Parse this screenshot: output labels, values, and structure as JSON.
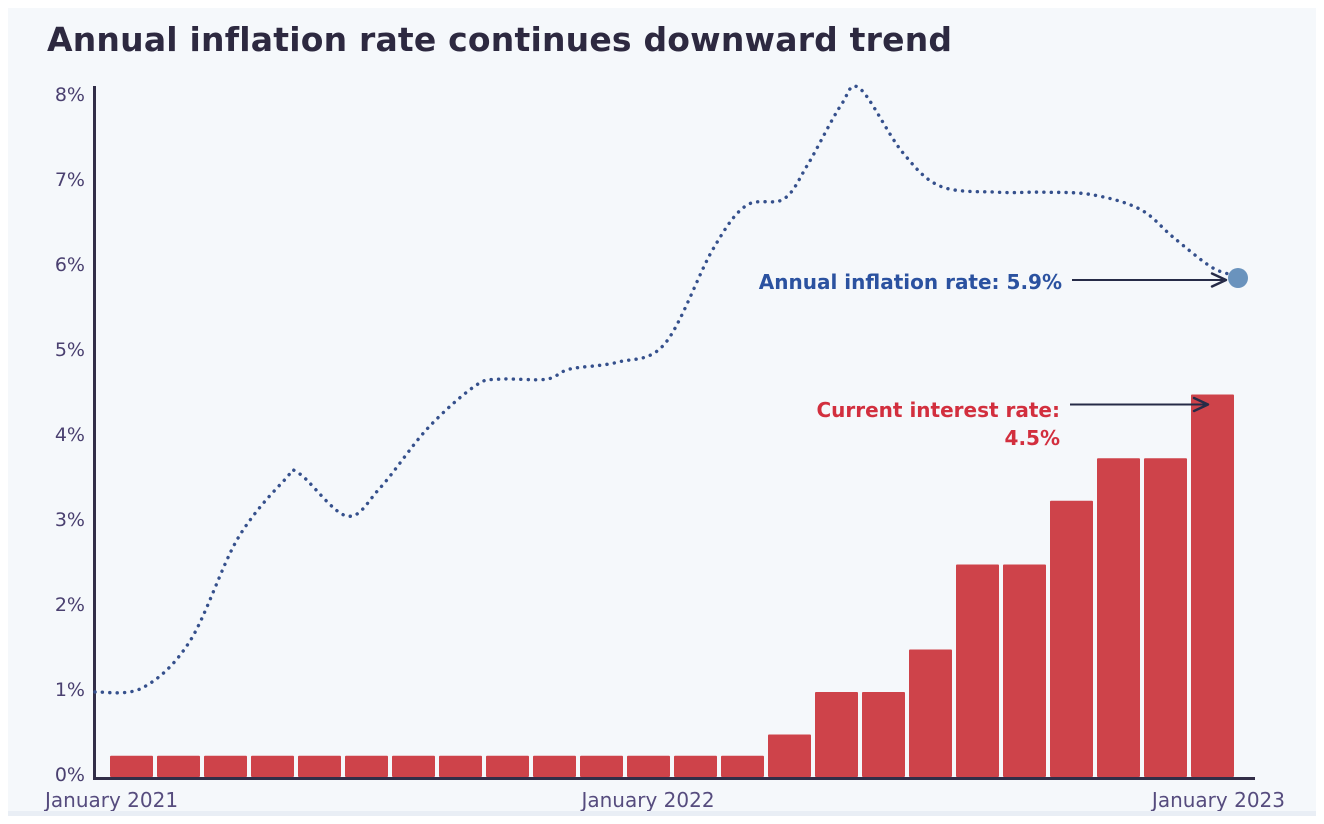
{
  "page": {
    "title": "Annual inflation rate continues downward trend",
    "background_color": "#f5f8fb",
    "title_color": "#2d2940"
  },
  "chart_data": {
    "type": "combo",
    "title": "Annual inflation rate continues downward trend",
    "grid": false,
    "legend": "none",
    "y_axis": {
      "unit": "%",
      "min": 0,
      "max": 8,
      "tick_step": 1,
      "tick_labels": [
        "0%",
        "1%",
        "2%",
        "3%",
        "4%",
        "5%",
        "6%",
        "7%",
        "8%"
      ]
    },
    "x_axis": {
      "tick_labels": [
        "January 2021",
        "January 2022",
        "January 2023"
      ],
      "months_span": 24
    },
    "axis_color": "#322e48",
    "series": [
      {
        "name": "Current interest rate",
        "type": "bar",
        "color": "#ce434a",
        "unit": "%",
        "span": "monthly bars from just after January 2021 through January 2023",
        "values": [
          0.25,
          0.25,
          0.25,
          0.25,
          0.25,
          0.25,
          0.25,
          0.25,
          0.25,
          0.25,
          0.25,
          0.25,
          0.25,
          0.25,
          0.5,
          1.0,
          1.0,
          1.5,
          2.5,
          2.5,
          3.25,
          3.75,
          3.75,
          4.5
        ]
      },
      {
        "name": "Annual inflation rate",
        "type": "line",
        "style": "dotted",
        "color": "#35508c",
        "end_dot_color": "#6a93bd",
        "unit": "%",
        "x_unit": "months since January 2021",
        "points": [
          [
            0,
            1.0
          ],
          [
            1,
            1.05
          ],
          [
            2,
            1.6
          ],
          [
            3,
            2.8
          ],
          [
            4,
            3.5
          ],
          [
            4.3,
            3.57
          ],
          [
            5.3,
            3.07
          ],
          [
            6,
            3.4
          ],
          [
            7,
            4.1
          ],
          [
            8,
            4.6
          ],
          [
            8.5,
            4.68
          ],
          [
            9.5,
            4.68
          ],
          [
            10,
            4.8
          ],
          [
            11,
            4.88
          ],
          [
            12,
            5.1
          ],
          [
            13,
            6.2
          ],
          [
            13.7,
            6.72
          ],
          [
            14.5,
            6.8
          ],
          [
            15,
            7.2
          ],
          [
            15.7,
            7.9
          ],
          [
            16.1,
            8.1
          ],
          [
            17,
            7.35
          ],
          [
            17.8,
            6.95
          ],
          [
            19,
            6.88
          ],
          [
            20,
            6.88
          ],
          [
            21,
            6.85
          ],
          [
            22,
            6.68
          ],
          [
            22.7,
            6.35
          ],
          [
            23.5,
            6.0
          ],
          [
            24,
            5.9
          ]
        ],
        "final_value": 5.9
      }
    ],
    "annotations": {
      "inflation": {
        "label": "Annual inflation rate: 5.9%",
        "value": 5.9,
        "color": "#2b52a0",
        "arrow": "points right to blue dot at end of dotted line"
      },
      "interest": {
        "label_line1": "Current interest rate:",
        "label_line2": "4.5%",
        "value": 4.5,
        "color": "#d22f3e",
        "arrow": "points right to top of last red bar"
      }
    },
    "arrow_color": "#262b47"
  }
}
